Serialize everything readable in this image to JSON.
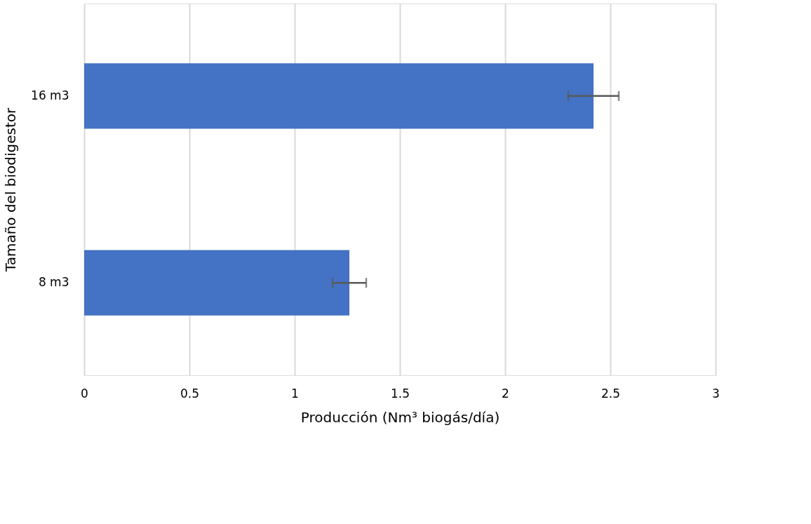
{
  "chart_data": {
    "type": "bar",
    "orientation": "horizontal",
    "categories": [
      "16 m3",
      "8 m3"
    ],
    "values": [
      2.42,
      1.26
    ],
    "errors": [
      0.12,
      0.08
    ],
    "color": "#4472c4",
    "xlim": [
      0,
      3
    ],
    "xticks": [
      0,
      0.5,
      1,
      1.5,
      2,
      2.5,
      3
    ],
    "xlabel": "Producción (Nm³ biogás/día)",
    "ylabel": "Tamaño del biodigestor",
    "grid": "x"
  }
}
